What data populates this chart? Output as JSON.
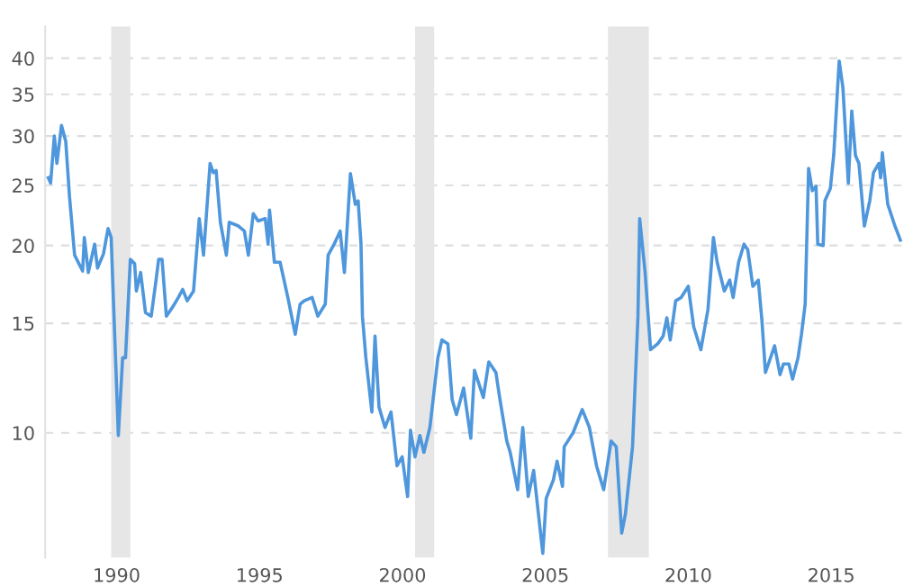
{
  "chart_data": {
    "type": "line",
    "log": "y",
    "grid": "y",
    "xlim": [
      1987.5,
      2017.5
    ],
    "ylim": [
      6.3,
      45
    ],
    "xticks": [
      1990,
      1995,
      2000,
      2005,
      2010,
      2015
    ],
    "yticks": [
      10,
      15,
      20,
      25,
      30,
      35,
      40
    ],
    "bands": [
      {
        "axis": "x",
        "from": 1989.81,
        "to": 1990.48,
        "color": "#e6e6e6"
      },
      {
        "axis": "x",
        "from": 2000.44,
        "to": 2001.11,
        "color": "#e6e6e6"
      },
      {
        "axis": "x",
        "from": 2007.19,
        "to": 2008.62,
        "color": "#e6e6e6"
      }
    ],
    "series": [
      {
        "color": "#4f97dc",
        "line_style": "solid",
        "x": [
          1987.61,
          1987.69,
          1987.82,
          1987.91,
          1988.07,
          1988.22,
          1988.35,
          1988.53,
          1988.81,
          1988.87,
          1989.01,
          1989.23,
          1989.33,
          1989.54,
          1989.7,
          1989.81,
          1989.87,
          1990.06,
          1990.21,
          1990.31,
          1990.42,
          1990.48,
          1990.63,
          1990.69,
          1990.84,
          1991.01,
          1991.21,
          1991.38,
          1991.47,
          1991.59,
          1991.74,
          1991.95,
          1992.16,
          1992.31,
          1992.47,
          1992.69,
          1992.89,
          1993.04,
          1993.27,
          1993.38,
          1993.48,
          1993.63,
          1993.84,
          1993.94,
          1994.26,
          1994.47,
          1994.61,
          1994.78,
          1994.95,
          1995.2,
          1995.3,
          1995.35,
          1995.52,
          1995.72,
          1995.99,
          1996.25,
          1996.42,
          1996.56,
          1996.84,
          1997.04,
          1997.3,
          1997.4,
          1997.61,
          1997.82,
          1997.97,
          1998.18,
          1998.35,
          1998.45,
          1998.55,
          1998.6,
          1998.72,
          1998.93,
          1999.04,
          1999.18,
          1999.39,
          1999.6,
          1999.81,
          1999.99,
          2000.18,
          2000.28,
          2000.44,
          2000.61,
          2000.75,
          2000.96,
          2001.24,
          2001.38,
          2001.59,
          2001.74,
          2001.89,
          2002.14,
          2002.39,
          2002.52,
          2002.83,
          2003.02,
          2003.27,
          2003.4,
          2003.65,
          2003.77,
          2004.03,
          2004.21,
          2004.4,
          2004.59,
          2004.91,
          2005.03,
          2005.28,
          2005.41,
          2005.6,
          2005.66,
          2005.97,
          2006.29,
          2006.54,
          2006.79,
          2007.04,
          2007.3,
          2007.48,
          2007.67,
          2007.8,
          2008.05,
          2008.24,
          2008.3,
          2008.49,
          2008.68,
          2008.93,
          2009.12,
          2009.25,
          2009.37,
          2009.56,
          2009.75,
          2010.0,
          2010.19,
          2010.44,
          2010.69,
          2010.88,
          2011.01,
          2011.26,
          2011.45,
          2011.57,
          2011.76,
          2011.95,
          2012.08,
          2012.26,
          2012.45,
          2012.58,
          2012.7,
          2013.02,
          2013.21,
          2013.33,
          2013.52,
          2013.65,
          2013.84,
          2013.96,
          2014.09,
          2014.21,
          2014.34,
          2014.47,
          2014.53,
          2014.72,
          2014.78,
          2014.97,
          2015.09,
          2015.28,
          2015.41,
          2015.6,
          2015.72,
          2015.85,
          2015.97,
          2016.16,
          2016.35,
          2016.48,
          2016.67,
          2016.73,
          2016.79,
          2016.98,
          2017.23,
          2017.3,
          2017.42
        ],
        "values": [
          25.7,
          25.2,
          30.0,
          27.1,
          31.2,
          29.4,
          24.0,
          19.3,
          18.2,
          20.6,
          18.1,
          20.1,
          18.4,
          19.4,
          21.3,
          20.6,
          17.2,
          9.9,
          13.2,
          13.2,
          16.7,
          19.0,
          18.7,
          16.9,
          18.1,
          15.6,
          15.4,
          17.6,
          19.0,
          19.0,
          15.4,
          15.9,
          16.5,
          17.0,
          16.3,
          16.9,
          22.1,
          19.3,
          27.1,
          26.2,
          26.4,
          21.8,
          19.3,
          21.8,
          21.5,
          21.1,
          19.3,
          22.5,
          21.9,
          22.1,
          20.1,
          22.8,
          18.8,
          18.8,
          16.5,
          14.4,
          16.1,
          16.3,
          16.5,
          15.4,
          16.1,
          19.3,
          20.1,
          21.1,
          18.1,
          26.1,
          23.3,
          23.6,
          20.1,
          15.4,
          13.2,
          10.8,
          14.3,
          11.0,
          10.2,
          10.8,
          8.85,
          9.15,
          7.9,
          10.1,
          9.15,
          9.9,
          9.3,
          10.2,
          13.2,
          14.1,
          13.9,
          11.3,
          10.7,
          11.8,
          9.8,
          12.6,
          11.4,
          13.0,
          12.5,
          11.4,
          9.7,
          9.3,
          8.1,
          10.2,
          7.9,
          8.7,
          6.4,
          7.85,
          8.4,
          9.0,
          8.2,
          9.5,
          10.0,
          10.9,
          10.2,
          8.85,
          8.1,
          9.7,
          9.5,
          6.9,
          7.4,
          9.5,
          15.4,
          22.1,
          18.1,
          13.6,
          13.9,
          14.3,
          15.3,
          14.1,
          16.3,
          16.5,
          17.2,
          14.8,
          13.6,
          15.8,
          20.6,
          18.8,
          16.9,
          17.6,
          16.5,
          18.8,
          20.1,
          19.7,
          17.2,
          17.6,
          15.1,
          12.5,
          13.8,
          12.4,
          12.9,
          12.9,
          12.2,
          13.2,
          14.4,
          16.1,
          26.6,
          24.5,
          24.9,
          20.1,
          20.0,
          23.6,
          24.7,
          28.0,
          39.6,
          35.9,
          25.2,
          32.9,
          27.9,
          27.1,
          21.5,
          23.6,
          26.2,
          27.1,
          25.7,
          28.2,
          23.3,
          21.5,
          21.1,
          20.4
        ]
      }
    ]
  }
}
